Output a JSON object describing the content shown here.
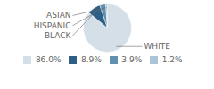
{
  "chart_data": {
    "type": "pie",
    "categories": [
      "WHITE",
      "BLACK",
      "HISPANIC",
      "ASIAN"
    ],
    "values": [
      86.0,
      8.9,
      3.9,
      1.2
    ],
    "value_labels": [
      "86.0%",
      "8.9%",
      "3.9%",
      "1.2%"
    ],
    "colors": [
      "#d4dfe8",
      "#2e5f87",
      "#6090b0",
      "#adc4d8"
    ],
    "legend": "bottom"
  }
}
